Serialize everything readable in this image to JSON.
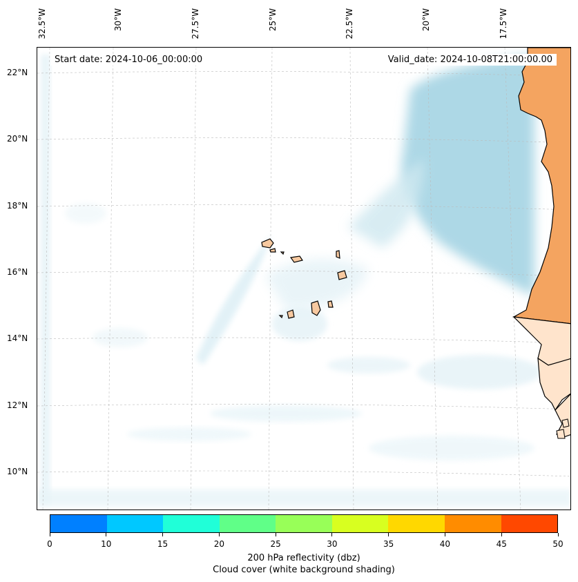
{
  "map": {
    "lon_labels": [
      "32.5°W",
      "30°W",
      "27.5°W",
      "25°W",
      "22.5°W",
      "20°W",
      "17.5°W"
    ],
    "lat_labels": [
      "22°N",
      "20°N",
      "18°N",
      "16°N",
      "14°N",
      "12°N",
      "10°N"
    ],
    "start_date": "Start date: 2024-10-06_00:00:00",
    "valid_date": "Valid_date: 2024-10-08T21:00:00.00",
    "colors": {
      "land_sahara": "#f4a460",
      "land_light": "#ffe4cc",
      "island": "#f7c9a0",
      "cloud": "#add8e6",
      "coastline": "#000000",
      "grid": "#bbbbbb"
    }
  },
  "colorbar": {
    "tick_labels": [
      "0",
      "10",
      "15",
      "20",
      "25",
      "30",
      "35",
      "40",
      "45",
      "50"
    ],
    "colors": [
      "#0080ff",
      "#00c8ff",
      "#20ffd8",
      "#60ff88",
      "#98ff58",
      "#d8ff20",
      "#ffd800",
      "#ff8c00",
      "#ff4800"
    ],
    "label_line1": "200 hPa reflectivity (dbz)",
    "label_line2": "Cloud cover (white background shading)"
  }
}
